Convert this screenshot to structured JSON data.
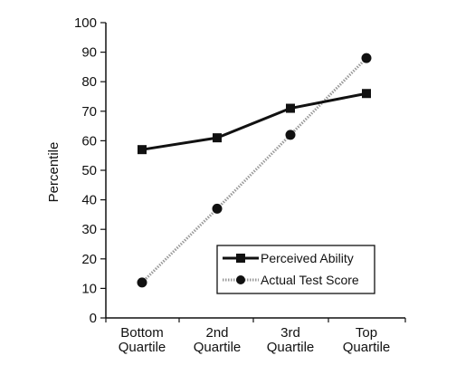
{
  "chart_data": {
    "type": "line",
    "title": "",
    "xlabel": "",
    "ylabel": "Percentile",
    "ylim": [
      0,
      100
    ],
    "yticks": [
      0,
      10,
      20,
      30,
      40,
      50,
      60,
      70,
      80,
      90,
      100
    ],
    "categories": [
      [
        "Bottom",
        "Quartile"
      ],
      [
        "2nd",
        "Quartile"
      ],
      [
        "3rd",
        "Quartile"
      ],
      [
        "Top",
        "Quartile"
      ]
    ],
    "series": [
      {
        "name": "Perceived Ability",
        "marker": "square",
        "line": "solid",
        "color": "#111111",
        "values": [
          57,
          61,
          71,
          76
        ]
      },
      {
        "name": "Actual Test Score",
        "marker": "circle",
        "line": "dotted-gray",
        "color": "#9a9a9a",
        "values": [
          12,
          37,
          62,
          88
        ]
      }
    ],
    "legend_position": "bottom-right",
    "grid": false
  }
}
